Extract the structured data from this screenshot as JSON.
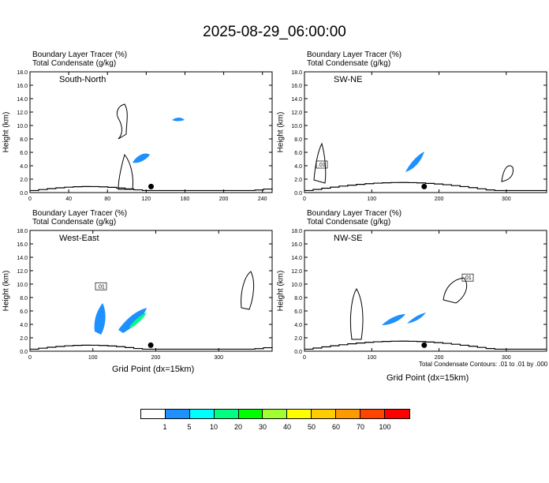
{
  "title": "2025-08-29_06:00:00",
  "panel_header": {
    "line1": "Boundary Layer Tracer   (%)",
    "line2": "Total Condensate   (g/kg)"
  },
  "ylabel": "Height (km)",
  "xlabel": "Grid Point (dx=15km)",
  "contour_note": "Total Condensate Contours: .01 to .01 by .000",
  "colorbar": {
    "colors": [
      "#ffffff",
      "#1e90ff",
      "#00ffff",
      "#00ff80",
      "#00ff00",
      "#a0ff30",
      "#ffff00",
      "#ffcc00",
      "#ff9900",
      "#ff4400",
      "#ff0000"
    ],
    "labels": [
      "1",
      "5",
      "10",
      "20",
      "30",
      "40",
      "50",
      "60",
      "70",
      "100"
    ]
  },
  "chart_data": [
    {
      "type": "heatmap",
      "title": "South-North",
      "yticks": [
        "0.0",
        "2.0",
        "4.0",
        "6.0",
        "8.0",
        "10.0",
        "12.0",
        "14.0",
        "16.0",
        "18.0"
      ],
      "ylim": [
        0,
        18
      ],
      "xlim": [
        0,
        250
      ],
      "xticks": [
        0,
        40,
        80,
        120,
        160,
        200,
        240
      ],
      "marker_x": 125,
      "contour_labels": []
    },
    {
      "type": "heatmap",
      "title": "SW-NE",
      "yticks": [
        "0.0",
        "2.0",
        "4.0",
        "6.0",
        "8.0",
        "10.0",
        "12.0",
        "14.0",
        "16.0",
        "18.0"
      ],
      "ylim": [
        0,
        18
      ],
      "xlim": [
        0,
        360
      ],
      "xticks": [
        0,
        100,
        200,
        300
      ],
      "marker_x": 178,
      "contour_labels": [
        ".01"
      ]
    },
    {
      "type": "heatmap",
      "title": "West-East",
      "yticks": [
        "0.0",
        "2.0",
        "4.0",
        "6.0",
        "8.0",
        "10.0",
        "12.0",
        "14.0",
        "16.0",
        "18.0"
      ],
      "ylim": [
        0,
        18
      ],
      "xlim": [
        0,
        385
      ],
      "xticks": [
        0,
        100,
        200,
        300
      ],
      "marker_x": 192,
      "contour_labels": [
        ".01"
      ]
    },
    {
      "type": "heatmap",
      "title": "NW-SE",
      "yticks": [
        "0.0",
        "2.0",
        "4.0",
        "6.0",
        "8.0",
        "10.0",
        "12.0",
        "14.0",
        "16.0",
        "18.0"
      ],
      "ylim": [
        0,
        18
      ],
      "xlim": [
        0,
        360
      ],
      "xticks": [
        0,
        100,
        200,
        300
      ],
      "marker_x": 178,
      "contour_labels": [
        ".01"
      ]
    }
  ]
}
